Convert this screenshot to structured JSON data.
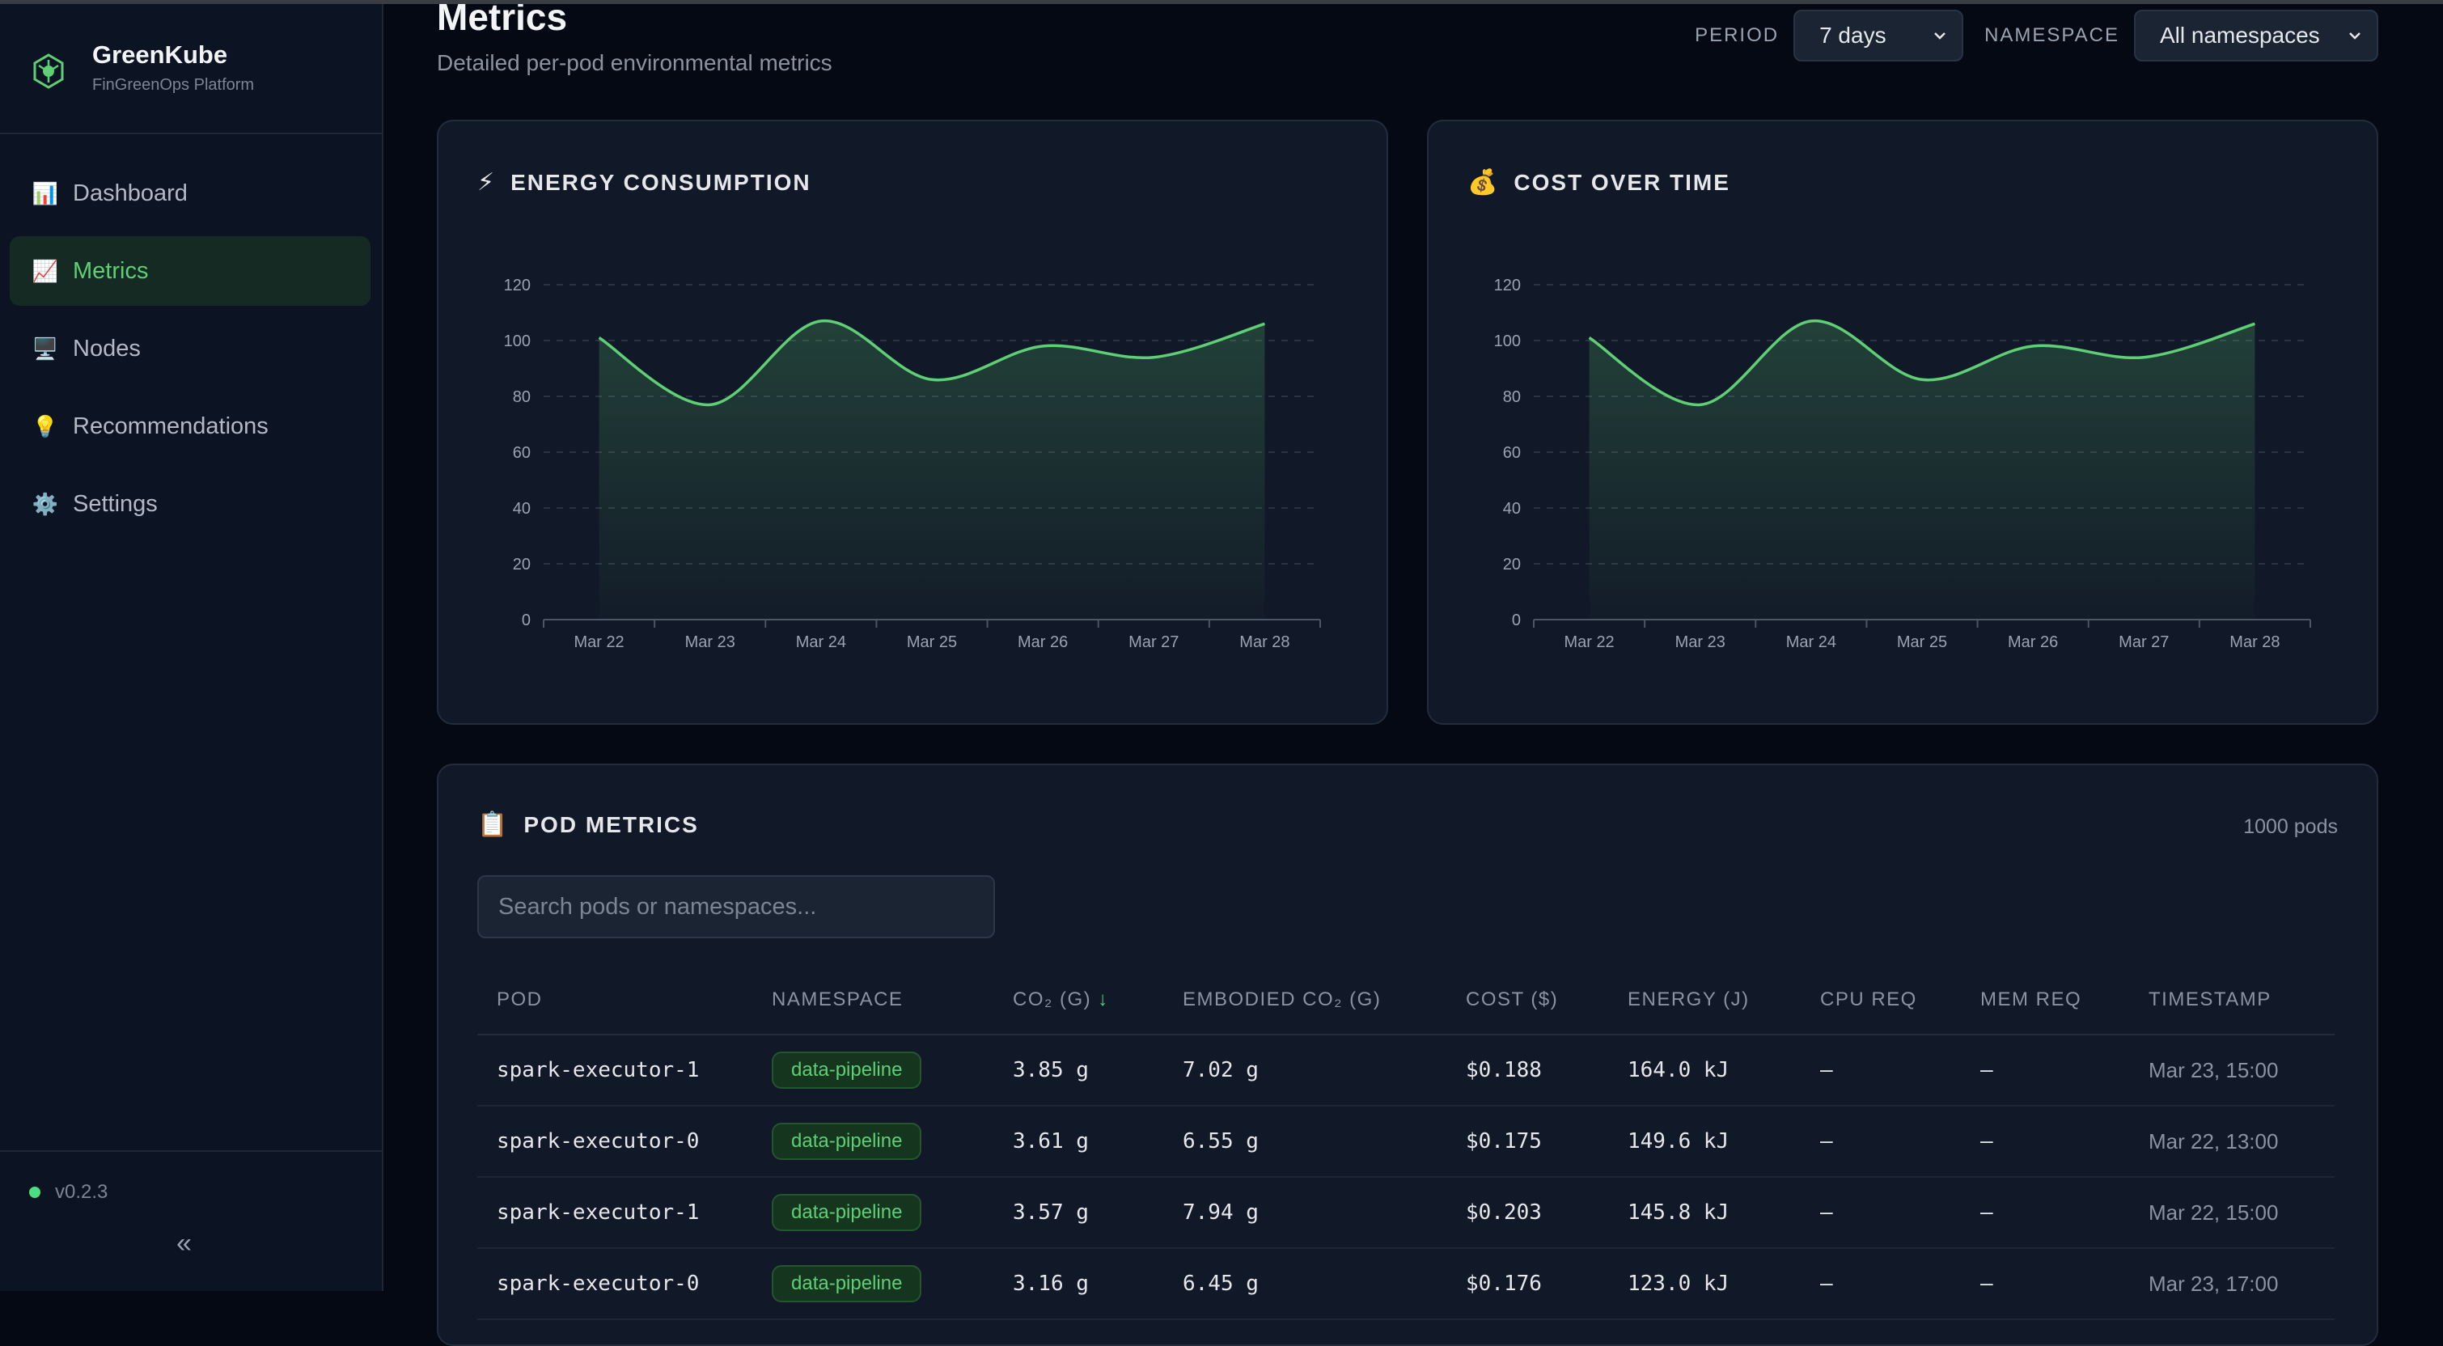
{
  "brand": {
    "name": "GreenKube",
    "subtitle": "FinGreenOps Platform"
  },
  "sidebar": {
    "items": [
      {
        "label": "Dashboard",
        "icon": "bar-chart-icon",
        "glyph": "📊"
      },
      {
        "label": "Metrics",
        "icon": "line-chart-icon",
        "glyph": "📈",
        "active": true
      },
      {
        "label": "Nodes",
        "icon": "monitor-icon",
        "glyph": "🖥️"
      },
      {
        "label": "Recommendations",
        "icon": "lightbulb-icon",
        "glyph": "💡"
      },
      {
        "label": "Settings",
        "icon": "gear-icon",
        "glyph": "⚙️"
      }
    ],
    "version": "v0.2.3",
    "collapse_glyph": "«"
  },
  "header": {
    "title": "Metrics",
    "subtitle": "Detailed per-pod environmental metrics",
    "period_label": "PERIOD",
    "period_value": "7 days",
    "namespace_label": "NAMESPACE",
    "namespace_value": "All namespaces"
  },
  "colors": {
    "accent": "#5fcf75",
    "background": "#040914",
    "card": "#111827"
  },
  "energy_card": {
    "title": "ENERGY CONSUMPTION",
    "icon": "lightning-icon",
    "glyph": "⚡"
  },
  "cost_card": {
    "title": "COST OVER TIME",
    "icon": "money-bag-icon",
    "glyph": "💰"
  },
  "chart_data": [
    {
      "type": "area",
      "title": "ENERGY CONSUMPTION",
      "categories": [
        "Mar 22",
        "Mar 23",
        "Mar 24",
        "Mar 25",
        "Mar 26",
        "Mar 27",
        "Mar 28"
      ],
      "values": [
        101,
        77,
        107,
        86,
        98,
        94,
        106
      ],
      "yticks": [
        0,
        20,
        40,
        60,
        80,
        100,
        120
      ],
      "ylim": [
        0,
        120
      ],
      "grid": true
    },
    {
      "type": "area",
      "title": "COST OVER TIME",
      "categories": [
        "Mar 22",
        "Mar 23",
        "Mar 24",
        "Mar 25",
        "Mar 26",
        "Mar 27",
        "Mar 28"
      ],
      "values": [
        101,
        77,
        107,
        86,
        98,
        94,
        106
      ],
      "yticks": [
        0,
        20,
        40,
        60,
        80,
        100,
        120
      ],
      "ylim": [
        0,
        120
      ],
      "grid": true
    }
  ],
  "pod_metrics": {
    "title": "POD METRICS",
    "icon": "clipboard-icon",
    "glyph": "📋",
    "count": "1000 pods",
    "search_placeholder": "Search pods or namespaces...",
    "columns": [
      "POD",
      "NAMESPACE",
      "CO₂ (G)",
      "EMBODIED CO₂ (G)",
      "COST ($)",
      "ENERGY (J)",
      "CPU REQ",
      "MEM REQ",
      "TIMESTAMP"
    ],
    "sort_arrow": "↓",
    "rows": [
      {
        "pod": "spark-executor-1",
        "namespace": "data-pipeline",
        "co2": "3.85 g",
        "embodied": "7.02 g",
        "cost": "$0.188",
        "energy": "164.0 kJ",
        "cpu": "—",
        "mem": "—",
        "timestamp": "Mar 23, 15:00"
      },
      {
        "pod": "spark-executor-0",
        "namespace": "data-pipeline",
        "co2": "3.61 g",
        "embodied": "6.55 g",
        "cost": "$0.175",
        "energy": "149.6 kJ",
        "cpu": "—",
        "mem": "—",
        "timestamp": "Mar 22, 13:00"
      },
      {
        "pod": "spark-executor-1",
        "namespace": "data-pipeline",
        "co2": "3.57 g",
        "embodied": "7.94 g",
        "cost": "$0.203",
        "energy": "145.8 kJ",
        "cpu": "—",
        "mem": "—",
        "timestamp": "Mar 22, 15:00"
      },
      {
        "pod": "spark-executor-0",
        "namespace": "data-pipeline",
        "co2": "3.16 g",
        "embodied": "6.45 g",
        "cost": "$0.176",
        "energy": "123.0 kJ",
        "cpu": "—",
        "mem": "—",
        "timestamp": "Mar 23, 17:00"
      }
    ]
  }
}
